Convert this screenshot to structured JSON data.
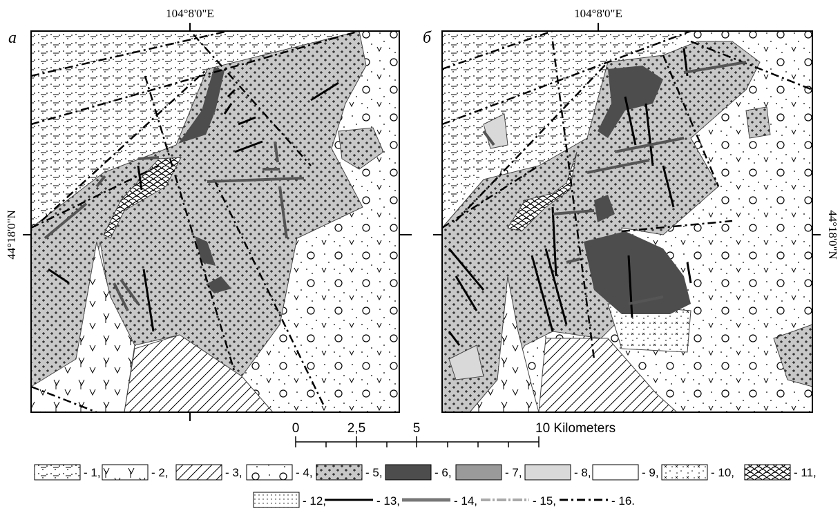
{
  "panels": [
    {
      "label": "а",
      "top_coordinate": "104°8'0\"E",
      "side_coordinate": "44°18'0\"N"
    },
    {
      "label": "б",
      "top_coordinate": "104°8'0\"E",
      "side_coordinate": "44°18'0\"N"
    }
  ],
  "scale_bar": {
    "labels": [
      "0",
      "2,5",
      "5",
      "10 Kilometers"
    ]
  },
  "legend": {
    "items": [
      "- 1,",
      "- 2,",
      "- 3,",
      "- 4,",
      "- 5,",
      "- 6,",
      "- 7,",
      "- 8,",
      "- 9,",
      "- 10,",
      "- 11,",
      "- 12,",
      "- 13,",
      "- 14,",
      "- 15,",
      "- 16."
    ]
  }
}
